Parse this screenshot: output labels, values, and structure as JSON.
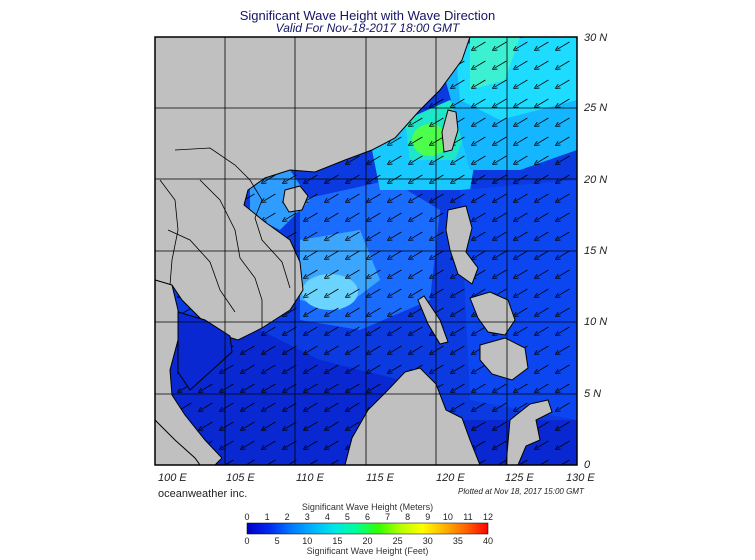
{
  "header": {
    "title": "Significant Wave Height with Wave Direction",
    "subtitle": "Valid For Nov-18-2017 18:00 GMT"
  },
  "map": {
    "lat_labels": [
      "30 N",
      "25 N",
      "20 N",
      "15 N",
      "10 N",
      "5 N",
      "0"
    ],
    "lon_labels": [
      "100 E",
      "105 E",
      "110 E",
      "115 E",
      "120 E",
      "125 E",
      "130 E"
    ],
    "lat_range": [
      0,
      30
    ],
    "lon_range": [
      100,
      130
    ],
    "land_color": "#c0c0c0",
    "dominant_wave_direction": "from northeast"
  },
  "footer": {
    "brand": "oceanweather inc.",
    "plotted": "Plotted at Nov 18, 2017 15:00 GMT"
  },
  "colorbar": {
    "title_meters": "Significant Wave Height (Meters)",
    "title_feet": "Significant Wave Height (Feet)",
    "meters": [
      "0",
      "1",
      "2",
      "3",
      "4",
      "5",
      "6",
      "7",
      "8",
      "9",
      "10",
      "11",
      "12"
    ],
    "feet": [
      "0",
      "5",
      "10",
      "15",
      "20",
      "25",
      "30",
      "35",
      "40"
    ],
    "colors": [
      "#0000c8",
      "#0028f0",
      "#0078ff",
      "#00b4ff",
      "#00e6e6",
      "#00ff96",
      "#32ff00",
      "#b4ff00",
      "#ffff00",
      "#ffb400",
      "#ff6400",
      "#ff0000"
    ]
  }
}
